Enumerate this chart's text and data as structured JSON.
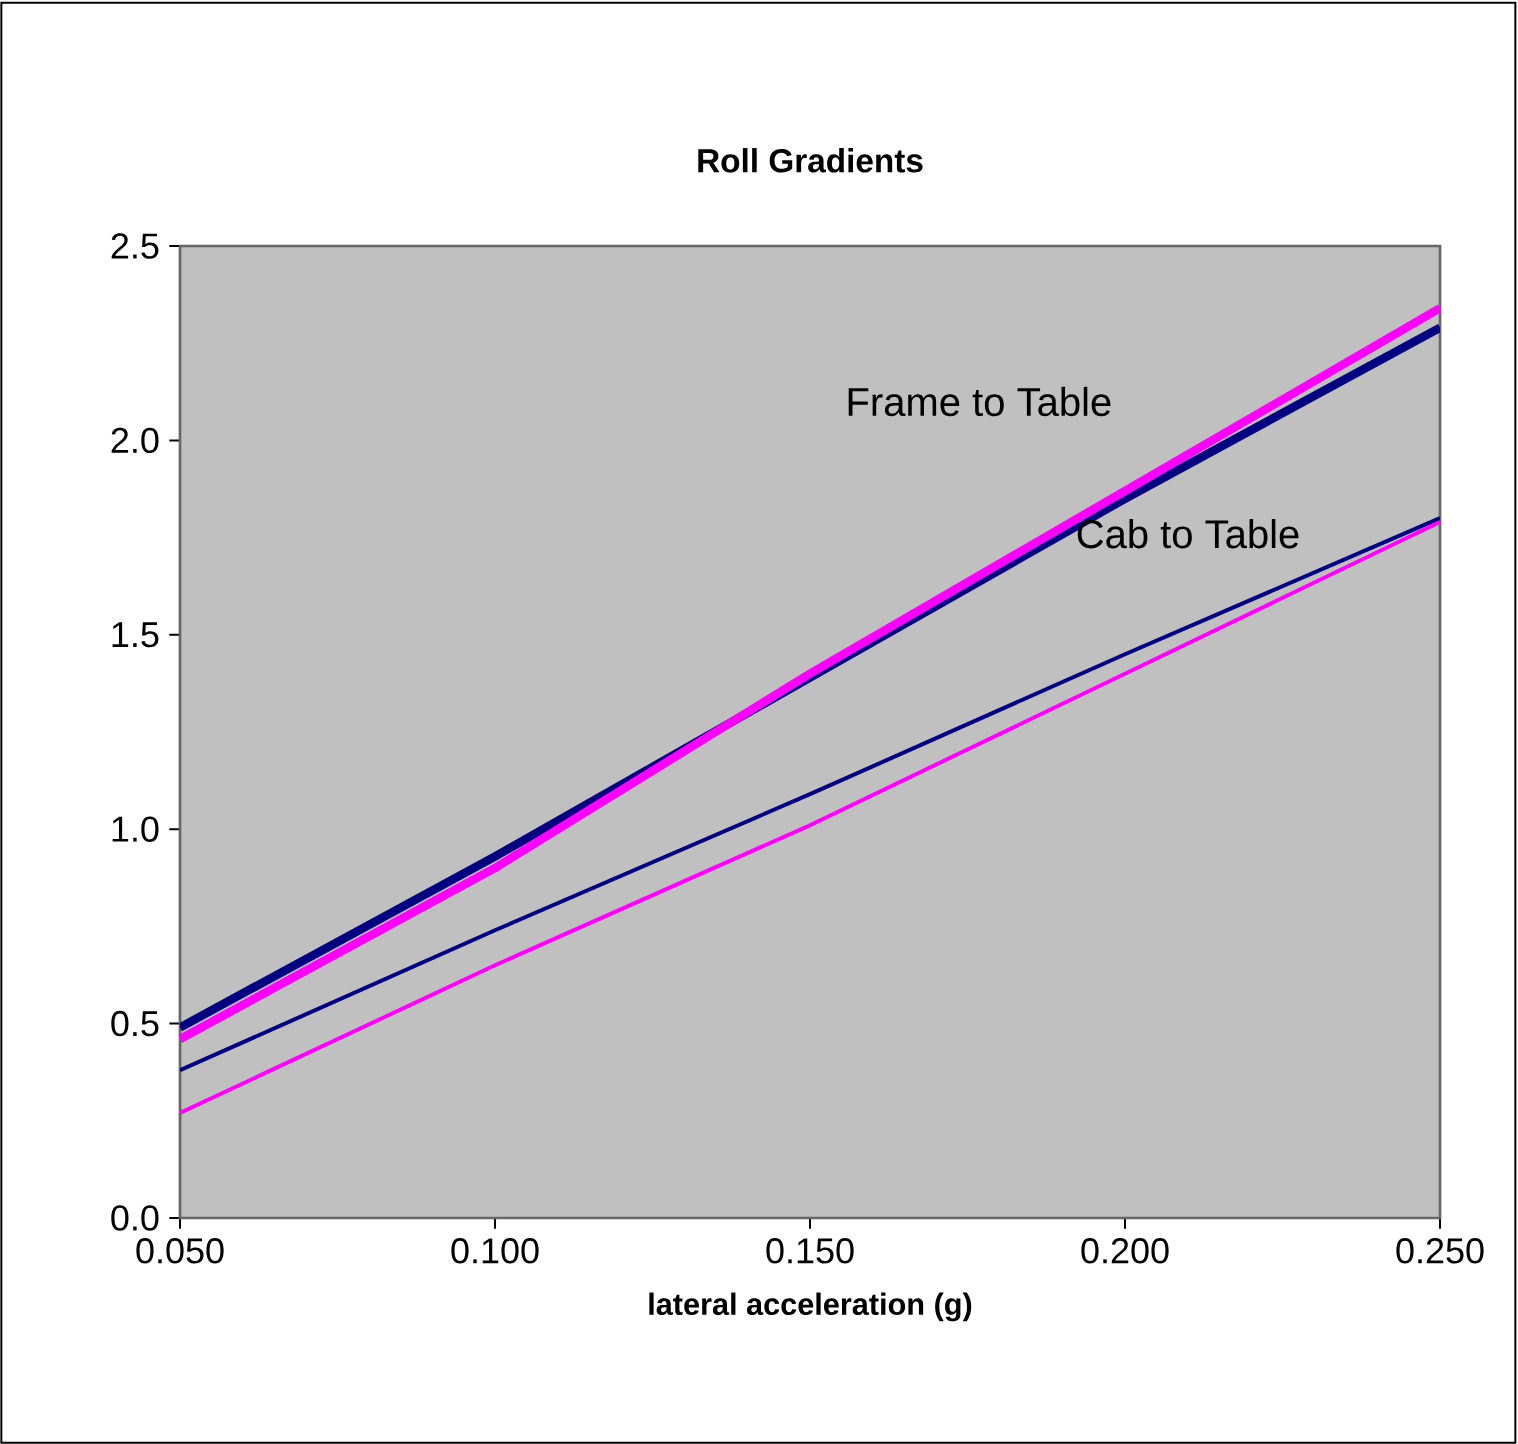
{
  "chart_data": {
    "type": "line",
    "title": "Roll Gradients",
    "xlabel": "lateral acceleration (g)",
    "x": [
      0.05,
      0.1,
      0.15,
      0.2,
      0.25
    ],
    "series": [
      {
        "color": "#000080",
        "values": [
          0.49,
          0.93,
          1.39,
          1.85,
          2.29
        ]
      },
      {
        "color": "#ff00ff",
        "values": [
          0.46,
          0.9,
          1.4,
          1.87,
          2.34
        ]
      },
      {
        "color": "#000080",
        "values": [
          0.38,
          0.74,
          1.09,
          1.45,
          1.8
        ]
      },
      {
        "color": "#ff00ff",
        "values": [
          0.27,
          0.65,
          1.01,
          1.4,
          1.79
        ]
      }
    ],
    "xlim": [
      0.05,
      0.25
    ],
    "xticks": [
      {
        "value": 0.05,
        "label": "0.050"
      },
      {
        "value": 0.1,
        "label": "0.100"
      },
      {
        "value": 0.15,
        "label": "0.150"
      },
      {
        "value": 0.2,
        "label": "0.200"
      },
      {
        "value": 0.25,
        "label": "0.250"
      }
    ],
    "ylim": [
      0,
      2.5
    ],
    "yticks": [
      {
        "value": 0,
        "label": "0.0"
      },
      {
        "value": 0.5,
        "label": "0.5"
      },
      {
        "value": 1,
        "label": "1.0"
      },
      {
        "value": 1.5,
        "label": "1.5"
      },
      {
        "value": 2,
        "label": "2.0"
      },
      {
        "value": 2.5,
        "label": "2.5"
      }
    ],
    "annotations": [
      "Frame to Table",
      "Cab to Table"
    ],
    "marker": "none",
    "line_style": "solid"
  }
}
